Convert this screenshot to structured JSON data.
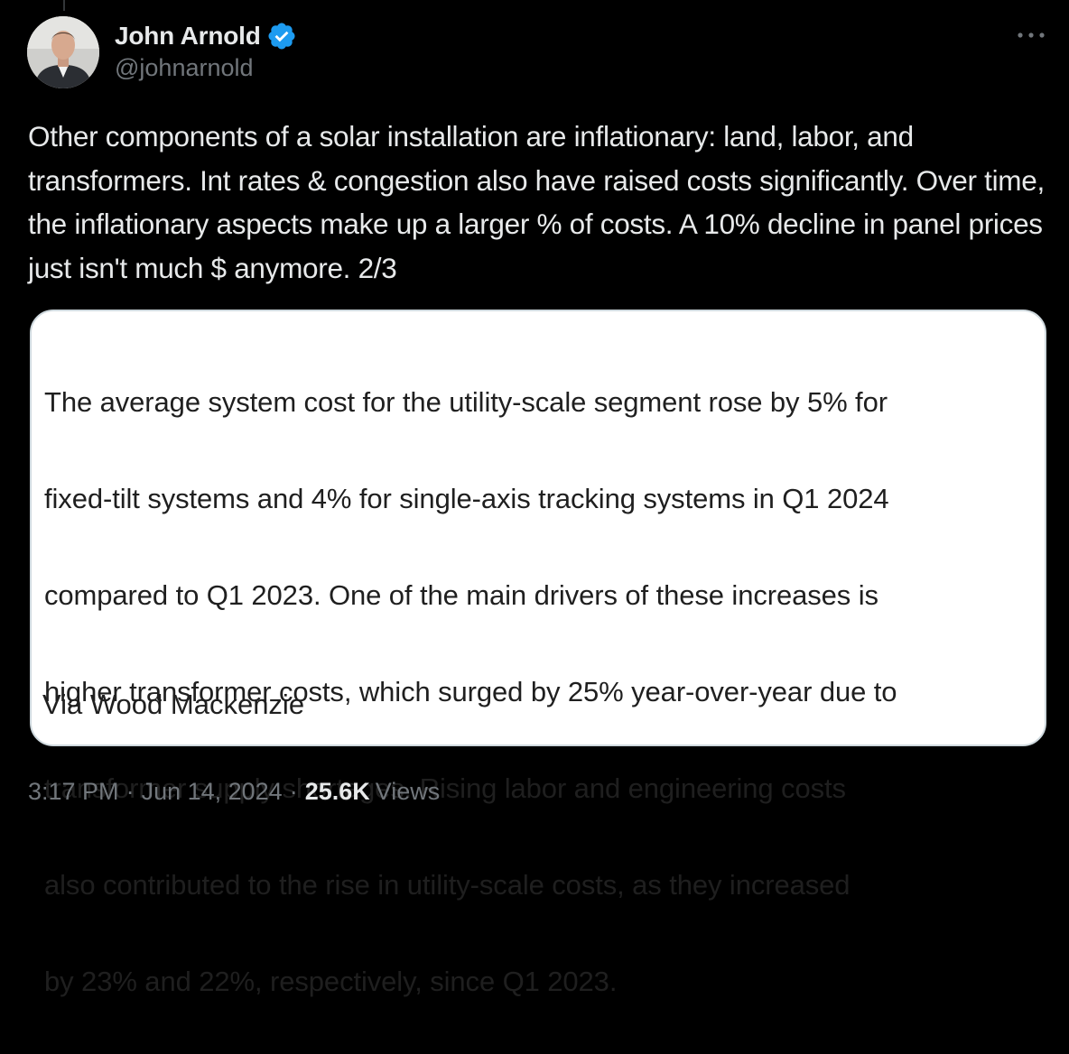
{
  "author": {
    "display_name": "John Arnold",
    "handle": "@johnarnold",
    "verified": true,
    "verified_color": "#1d9bf0"
  },
  "tweet": {
    "text": "Other components of a solar installation are inflationary: land, labor, and transformers. Int rates & congestion also have raised costs significantly. Over time, the inflationary aspects make up a larger % of costs. A 10% decline in panel prices just isn't much $ anymore. 2/3"
  },
  "quote_image": {
    "lines": [
      "The average system cost for the utility-scale segment rose by 5% for",
      "fixed-tilt systems and 4% for single-axis tracking systems in Q1 2024",
      "compared to Q1 2023. One of the main drivers of these increases is",
      "higher transformer costs, which surged by 25% year-over-year due to",
      "transformer supply shortages. Rising labor and engineering costs",
      "also contributed to the rise in utility-scale costs, as they increased",
      "by 23% and 22%, respectively, since Q1 2023."
    ],
    "source": "Via Wood Mackenzie"
  },
  "meta": {
    "time": "3:17 PM",
    "date": "Jun 14, 2024",
    "separator": "·",
    "views_count": "25.6K",
    "views_label": "Views"
  },
  "icons": {
    "more": "more-horizontal-icon",
    "verified": "verified-badge-icon"
  },
  "colors": {
    "background": "#000000",
    "text_primary": "#e7e9ea",
    "text_secondary": "#71767b",
    "card_background": "#ffffff"
  }
}
